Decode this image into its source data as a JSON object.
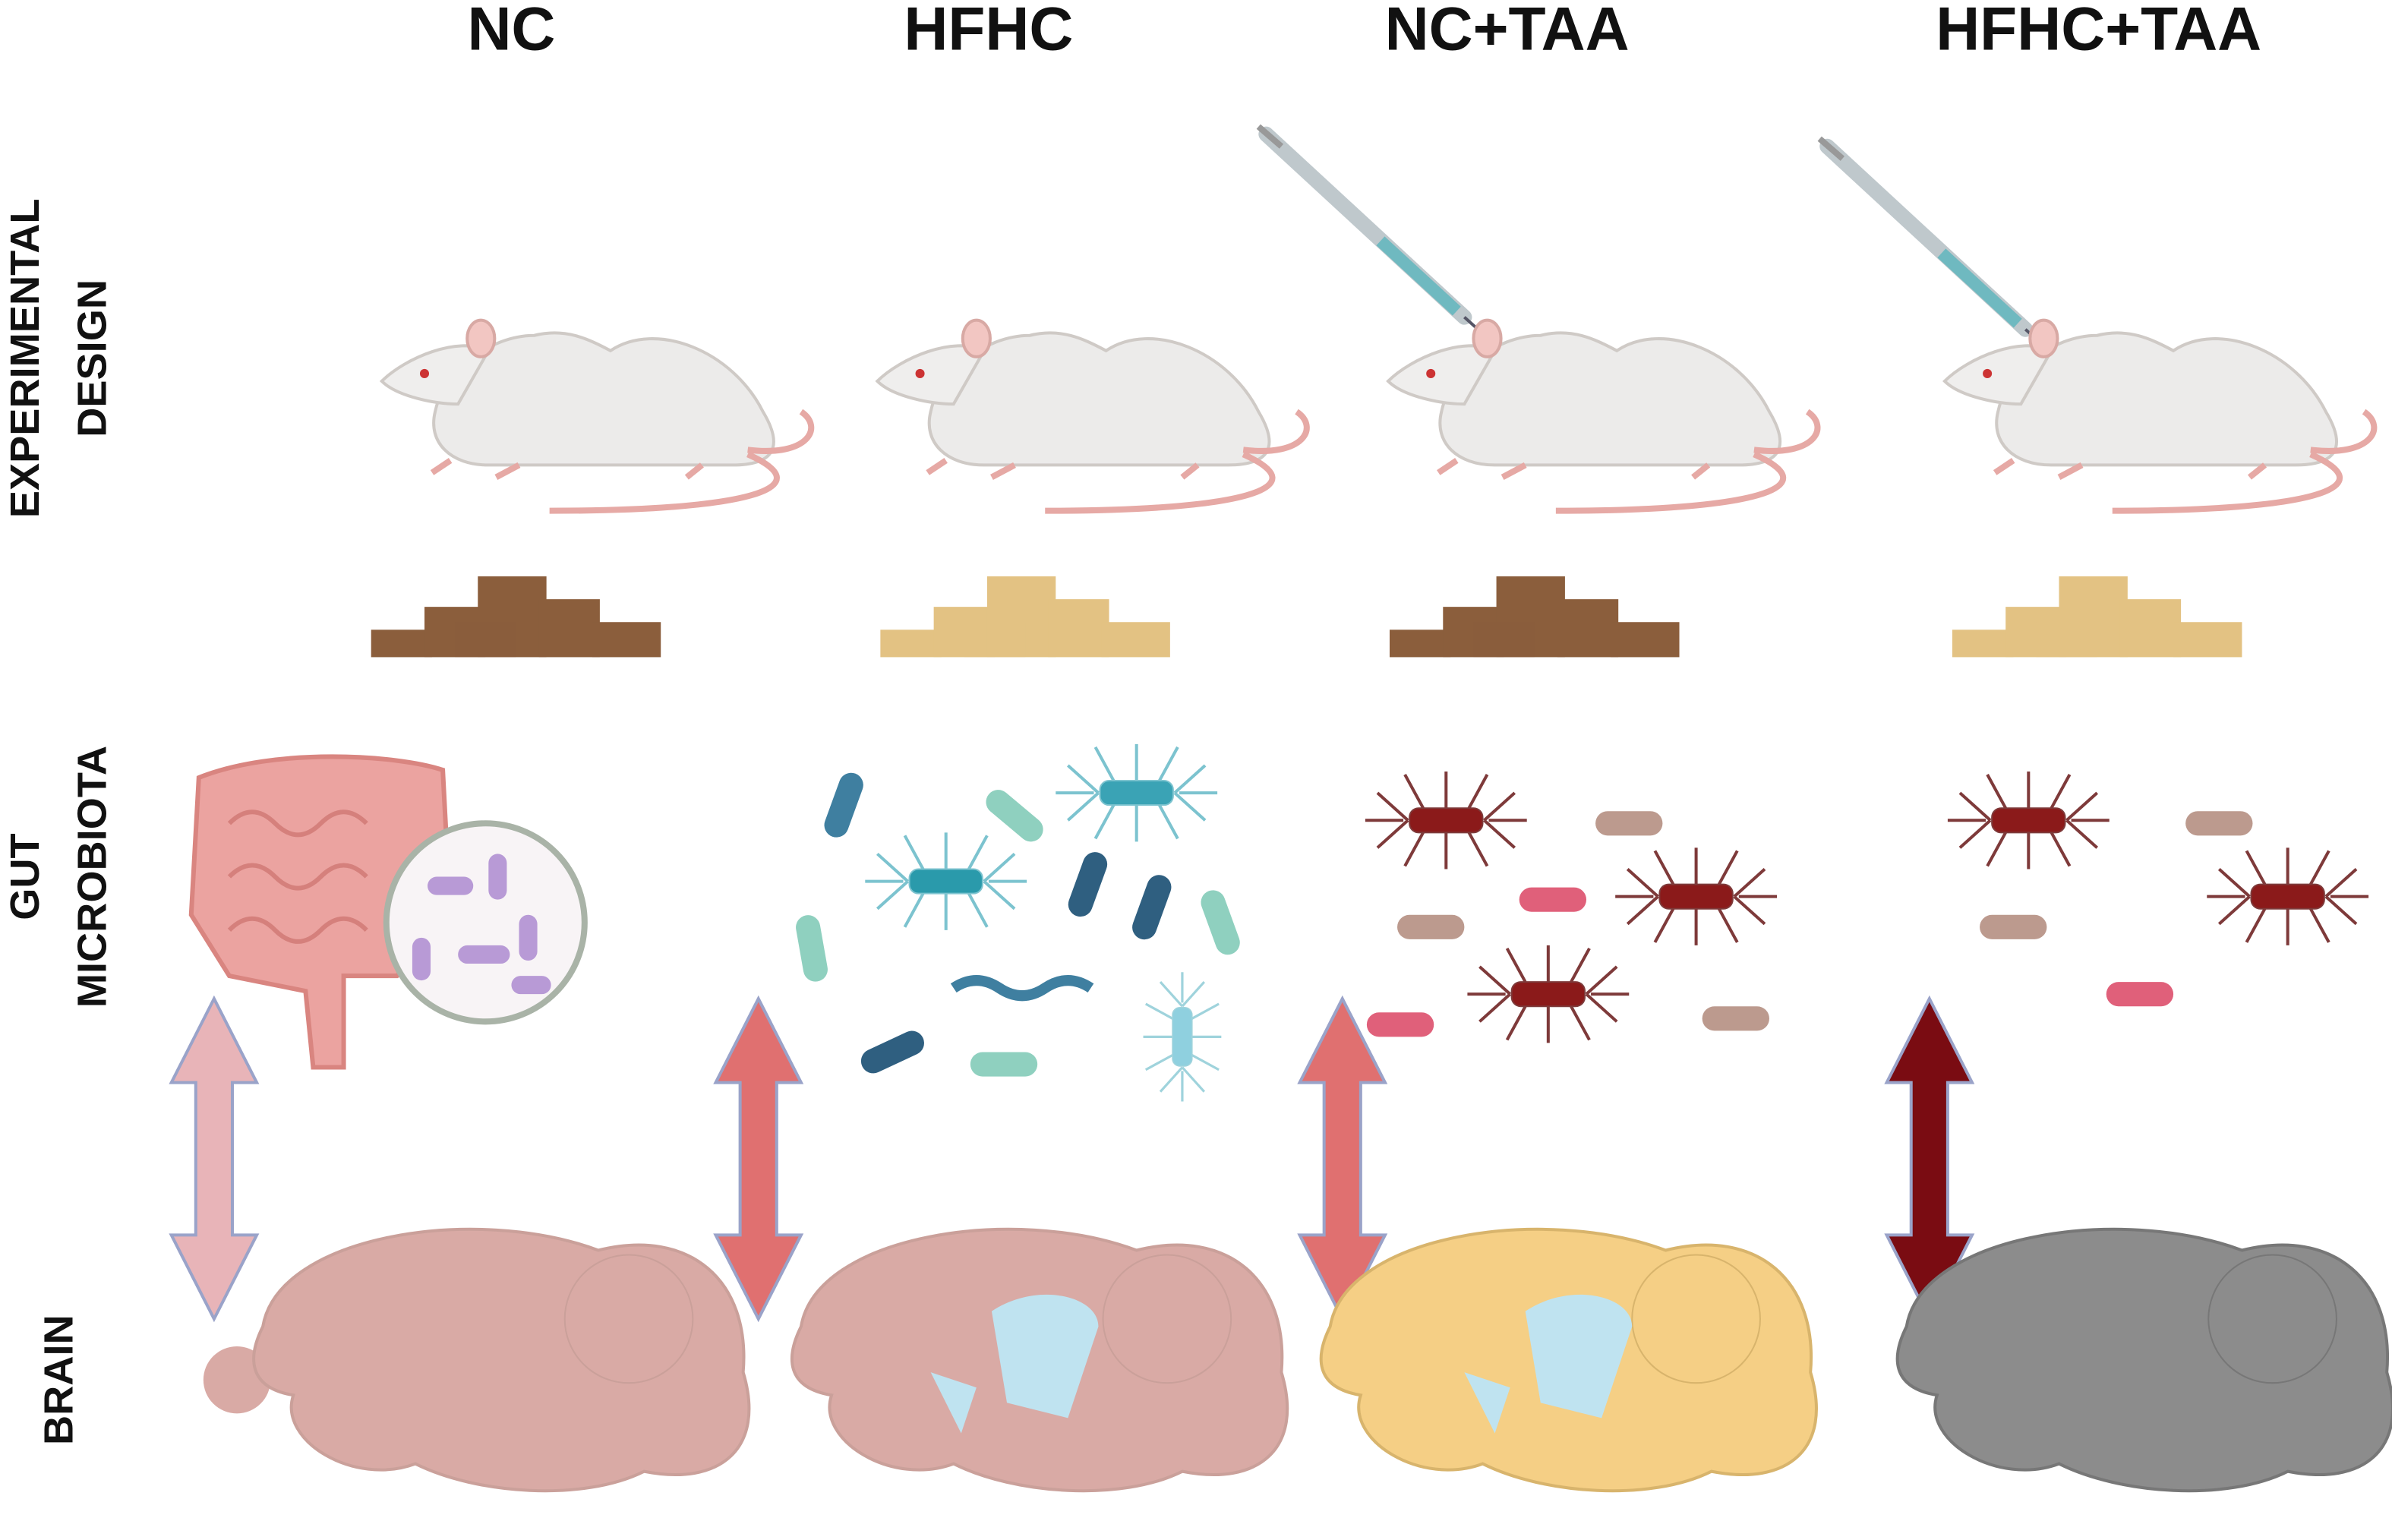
{
  "columns": [
    "NC",
    "HFHC",
    "NC+TAA",
    "HFHC+TAA"
  ],
  "rows": [
    {
      "lines": [
        "EXPERIMENTAL",
        "DESIGN"
      ]
    },
    {
      "lines": [
        "GUT",
        "MICROBIOTA"
      ]
    },
    {
      "lines": [
        "BRAIN"
      ]
    }
  ]
}
